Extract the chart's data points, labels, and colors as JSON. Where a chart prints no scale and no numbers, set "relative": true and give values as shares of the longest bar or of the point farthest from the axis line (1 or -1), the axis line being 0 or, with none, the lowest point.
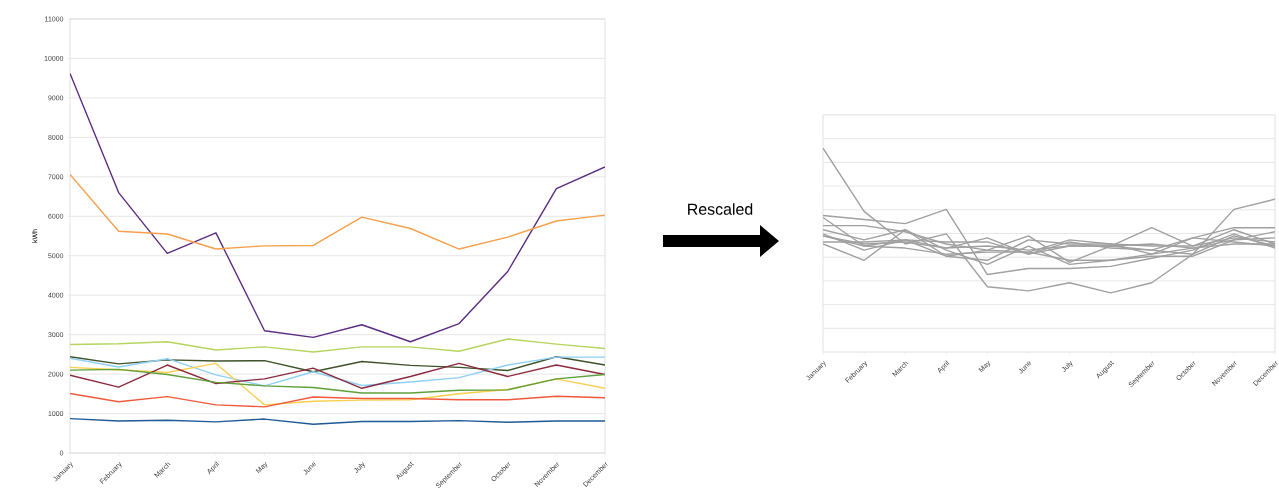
{
  "chart_data": [
    {
      "type": "line",
      "ylabel": "kWh",
      "categories": [
        "January",
        "February",
        "March",
        "April",
        "May",
        "June",
        "July",
        "August",
        "September",
        "October",
        "November",
        "December"
      ],
      "ylim": [
        0,
        11000
      ],
      "yticks": [
        0,
        1000,
        2000,
        3000,
        4000,
        5000,
        6000,
        7000,
        8000,
        9000,
        10000,
        11000
      ],
      "grid": "y",
      "series": [
        {
          "color": "#5b2c83",
          "values": [
            9620,
            6600,
            5060,
            5580,
            3100,
            2930,
            3250,
            2820,
            3280,
            4600,
            6700,
            7250
          ]
        },
        {
          "color": "#f6a04d",
          "values": [
            7060,
            5620,
            5550,
            5170,
            5250,
            5260,
            5980,
            5690,
            5170,
            5470,
            5880,
            6030
          ]
        },
        {
          "color": "#b5d55e",
          "values": [
            2750,
            2770,
            2820,
            2610,
            2690,
            2560,
            2690,
            2690,
            2580,
            2890,
            2760,
            2650
          ]
        },
        {
          "color": "#3d5229",
          "values": [
            2440,
            2260,
            2360,
            2330,
            2340,
            2060,
            2320,
            2220,
            2170,
            2090,
            2440,
            2230
          ]
        },
        {
          "color": "#8fd0f5",
          "values": [
            2400,
            2180,
            2390,
            1980,
            1700,
            2060,
            1710,
            1800,
            1910,
            2230,
            2430,
            2430
          ]
        },
        {
          "color": "#f8cf4f",
          "values": [
            2170,
            2110,
            2040,
            2270,
            1220,
            1310,
            1340,
            1350,
            1500,
            1610,
            1880,
            1640
          ]
        },
        {
          "color": "#8b2a3e",
          "values": [
            1970,
            1670,
            2230,
            1760,
            1880,
            2150,
            1640,
            1940,
            2270,
            1940,
            2230,
            1990
          ]
        },
        {
          "color": "#5fa03a",
          "values": [
            2100,
            2120,
            1990,
            1790,
            1700,
            1660,
            1520,
            1520,
            1590,
            1600,
            1880,
            1990
          ]
        },
        {
          "color": "#ef5a3c",
          "values": [
            1510,
            1300,
            1430,
            1220,
            1170,
            1420,
            1380,
            1380,
            1350,
            1350,
            1440,
            1400
          ]
        },
        {
          "color": "#1f5a96",
          "values": [
            870,
            810,
            830,
            790,
            860,
            730,
            800,
            800,
            820,
            780,
            810,
            810
          ]
        }
      ]
    },
    {
      "type": "line",
      "relative": true,
      "tick_labels": "x",
      "grid": "y",
      "annotations": [
        "Rescaled"
      ],
      "categories": [
        "January",
        "February",
        "March",
        "April",
        "May",
        "June",
        "July",
        "August",
        "September",
        "October",
        "November",
        "December"
      ],
      "series": [
        {
          "color": "#a0a0a0",
          "values": [
            1.0,
            0.69,
            0.53,
            0.58,
            0.32,
            0.3,
            0.34,
            0.29,
            0.34,
            0.48,
            0.7,
            0.75
          ]
        },
        {
          "color": "#a0a0a0",
          "values": [
            0.66,
            0.52,
            0.51,
            0.48,
            0.49,
            0.49,
            0.55,
            0.53,
            0.48,
            0.51,
            0.55,
            0.56
          ]
        },
        {
          "color": "#a0a0a0",
          "values": [
            0.54,
            0.54,
            0.55,
            0.51,
            0.52,
            0.5,
            0.52,
            0.52,
            0.5,
            0.56,
            0.54,
            0.52
          ]
        },
        {
          "color": "#a0a0a0",
          "values": [
            0.57,
            0.52,
            0.55,
            0.54,
            0.54,
            0.48,
            0.54,
            0.51,
            0.5,
            0.48,
            0.57,
            0.52
          ]
        },
        {
          "color": "#a0a0a0",
          "values": [
            0.6,
            0.55,
            0.6,
            0.5,
            0.43,
            0.52,
            0.43,
            0.45,
            0.48,
            0.56,
            0.61,
            0.61
          ]
        },
        {
          "color": "#a0a0a0",
          "values": [
            0.67,
            0.65,
            0.63,
            0.7,
            0.38,
            0.41,
            0.41,
            0.42,
            0.46,
            0.5,
            0.58,
            0.51
          ]
        },
        {
          "color": "#a0a0a0",
          "values": [
            0.53,
            0.45,
            0.6,
            0.47,
            0.5,
            0.57,
            0.44,
            0.52,
            0.61,
            0.52,
            0.6,
            0.53
          ]
        },
        {
          "color": "#a0a0a0",
          "values": [
            0.62,
            0.62,
            0.59,
            0.53,
            0.5,
            0.49,
            0.45,
            0.45,
            0.47,
            0.47,
            0.55,
            0.59
          ]
        },
        {
          "color": "#a0a0a0",
          "values": [
            0.58,
            0.5,
            0.55,
            0.47,
            0.45,
            0.55,
            0.53,
            0.53,
            0.52,
            0.52,
            0.56,
            0.54
          ]
        },
        {
          "color": "#a0a0a0",
          "values": [
            0.57,
            0.53,
            0.54,
            0.51,
            0.56,
            0.48,
            0.52,
            0.52,
            0.53,
            0.51,
            0.53,
            0.53
          ]
        }
      ]
    }
  ]
}
